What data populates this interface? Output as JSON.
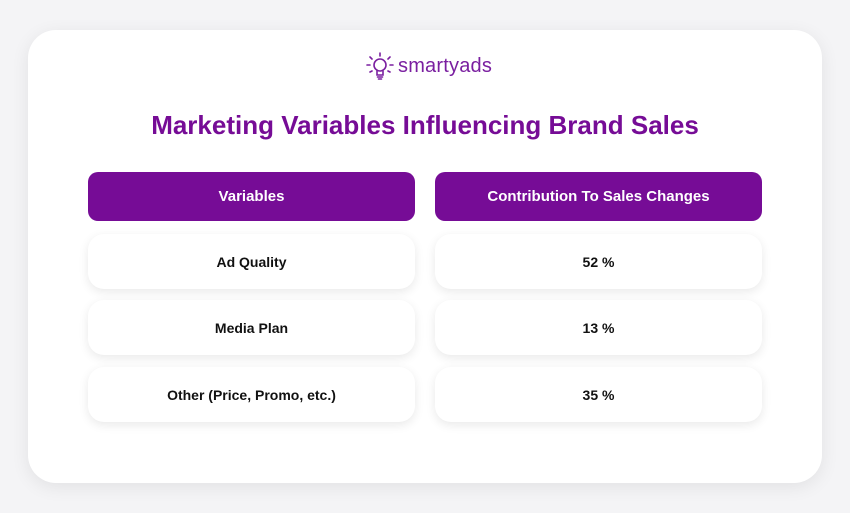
{
  "logo": {
    "text": "smartyads",
    "icon": "lightbulb-icon"
  },
  "title": "Marketing Variables Influencing Brand Sales",
  "table": {
    "headers": [
      "Variables",
      "Contribution To Sales Changes"
    ],
    "rows": [
      [
        "Ad Quality",
        "52 %"
      ],
      [
        "Media Plan",
        "13 %"
      ],
      [
        "Other (Price, Promo, etc.)",
        "35 %"
      ]
    ]
  },
  "colors": {
    "accent": "#760c96"
  }
}
